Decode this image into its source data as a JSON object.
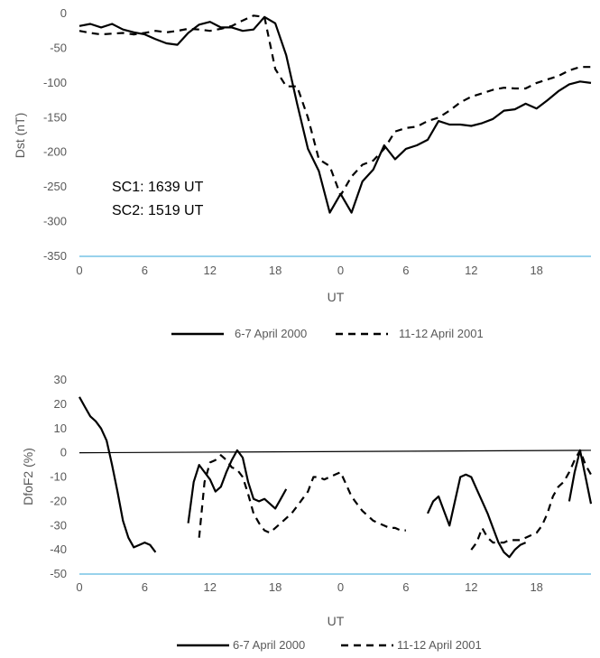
{
  "chart_data": [
    {
      "type": "line",
      "xlabel": "UT",
      "ylabel": "Dst (nT)",
      "x_ticks": [
        "0",
        "6",
        "12",
        "18",
        "0",
        "6",
        "12",
        "18"
      ],
      "x_tick_hours": [
        0,
        6,
        12,
        18,
        24,
        30,
        36,
        42
      ],
      "xlim": [
        0,
        47
      ],
      "ylim": [
        -350,
        0
      ],
      "y_ticks": [
        0,
        -50,
        -100,
        -150,
        -200,
        -250,
        -300,
        -350
      ],
      "grid": false,
      "legend": "bottom",
      "annotations": [
        "SC1: 1639 UT",
        "SC2: 1519 UT"
      ],
      "series": [
        {
          "name": "6-7 April 2000",
          "style": "solid",
          "x": [
            0,
            1,
            2,
            3,
            4,
            5,
            6,
            7,
            8,
            9,
            10,
            11,
            12,
            13,
            14,
            15,
            16,
            17,
            18,
            19,
            20,
            21,
            22,
            23,
            24,
            25,
            26,
            27,
            28,
            29,
            30,
            31,
            32,
            33,
            34,
            35,
            36,
            37,
            38,
            39,
            40,
            41,
            42,
            43,
            44,
            45,
            46,
            47
          ],
          "y": [
            -18,
            -15,
            -20,
            -15,
            -23,
            -27,
            -30,
            -37,
            -43,
            -45,
            -28,
            -16,
            -12,
            -20,
            -20,
            -25,
            -23,
            -5,
            -14,
            -60,
            -130,
            -195,
            -227,
            -287,
            -260,
            -287,
            -242,
            -225,
            -190,
            -210,
            -195,
            -190,
            -182,
            -155,
            -160,
            -160,
            -162,
            -158,
            -152,
            -140,
            -138,
            -130,
            -137,
            -125,
            -112,
            -102,
            -98,
            -100
          ]
        },
        {
          "name": "11-12 April 2001",
          "style": "dashed",
          "x": [
            0,
            1,
            2,
            3,
            4,
            5,
            6,
            7,
            8,
            9,
            10,
            11,
            12,
            13,
            14,
            15,
            16,
            17,
            18,
            19,
            20,
            21,
            22,
            23,
            24,
            25,
            26,
            27,
            28,
            29,
            30,
            31,
            32,
            33,
            34,
            35,
            36,
            37,
            38,
            39,
            40,
            41,
            42,
            43,
            44,
            45,
            46,
            47
          ],
          "y": [
            -25,
            -28,
            -30,
            -29,
            -28,
            -30,
            -28,
            -25,
            -27,
            -25,
            -22,
            -23,
            -25,
            -22,
            -18,
            -10,
            -3,
            -5,
            -80,
            -105,
            -105,
            -150,
            -210,
            -220,
            -262,
            -235,
            -218,
            -212,
            -195,
            -170,
            -165,
            -163,
            -155,
            -150,
            -140,
            -128,
            -120,
            -115,
            -110,
            -107,
            -108,
            -108,
            -100,
            -95,
            -90,
            -82,
            -77,
            -77
          ]
        }
      ]
    },
    {
      "type": "line",
      "xlabel": "UT",
      "ylabel": "DfoF2 (%)",
      "x_ticks": [
        "0",
        "6",
        "12",
        "18",
        "0",
        "6",
        "12",
        "18"
      ],
      "x_tick_hours": [
        0,
        6,
        12,
        18,
        24,
        30,
        36,
        42
      ],
      "xlim": [
        0,
        47
      ],
      "ylim": [
        -50,
        30
      ],
      "y_ticks": [
        30,
        20,
        10,
        0,
        -10,
        -20,
        -30,
        -40,
        -50
      ],
      "grid": false,
      "legend": "bottom",
      "reference_line": {
        "x": [
          0,
          47
        ],
        "y": [
          0,
          1
        ]
      },
      "series": [
        {
          "name": "6-7 April 2000",
          "style": "solid",
          "segments": [
            {
              "x": [
                0,
                0.5,
                1,
                1.5,
                2,
                2.5,
                3,
                3.5,
                4,
                4.5,
                5,
                5.5,
                6,
                6.5,
                7
              ],
              "y": [
                23,
                19,
                15,
                13,
                10,
                5,
                -5,
                -16,
                -28,
                -35,
                -39,
                -38,
                -37,
                -38,
                -41
              ]
            },
            {
              "x": [
                10,
                10.5,
                11,
                11.5,
                12,
                12.5,
                13,
                13.5,
                14,
                14.5,
                15,
                15.5,
                16,
                16.5,
                17,
                17.5,
                18,
                18.5,
                19
              ],
              "y": [
                -29,
                -12,
                -5,
                -8,
                -11,
                -16,
                -14,
                -8,
                -3,
                1,
                -2,
                -12,
                -19,
                -20,
                -19,
                -21,
                -23,
                -19,
                -15
              ]
            },
            {
              "x": [
                32,
                32.5,
                33,
                33.5,
                34,
                34.5,
                35,
                35.5,
                36,
                36.5,
                37,
                37.5,
                38,
                38.5,
                39,
                39.5,
                40,
                40.5,
                41
              ],
              "y": [
                -25,
                -20,
                -18,
                -24,
                -30,
                -20,
                -10,
                -9,
                -10,
                -15,
                -20,
                -25,
                -31,
                -37,
                -41,
                -43,
                -40,
                -38,
                -37
              ]
            },
            {
              "x": [
                45,
                45.5,
                46,
                46.5,
                47
              ],
              "y": [
                -20,
                -8,
                1,
                -10,
                -21
              ]
            }
          ]
        },
        {
          "name": "11-12 April 2001",
          "style": "dashed",
          "segments": [
            {
              "x": [
                11,
                11.5,
                12,
                12.5,
                13,
                13.5,
                14,
                14.5,
                15,
                15.5,
                16,
                16.5,
                17,
                17.5,
                18,
                18.5,
                19,
                19.5,
                20,
                20.5,
                21,
                21.5,
                22,
                22.5,
                23,
                23.5,
                24,
                24.5,
                25,
                25.5,
                26,
                26.5,
                27,
                27.5,
                28,
                28.5,
                29,
                29.5,
                30
              ],
              "y": [
                -35,
                -12,
                -4,
                -3,
                -1,
                -3,
                -6,
                -7,
                -10,
                -17,
                -25,
                -29,
                -32,
                -33,
                -31,
                -29,
                -27,
                -25,
                -22,
                -19,
                -16,
                -10,
                -10,
                -11,
                -10,
                -9,
                -8,
                -13,
                -18,
                -21,
                -24,
                -26,
                -28,
                -29,
                -30,
                -31,
                -31,
                -32,
                -32
              ]
            },
            {
              "x": [
                36,
                36.5,
                37,
                37.5,
                38,
                38.5,
                39,
                39.5,
                40,
                40.5,
                41,
                41.5,
                42,
                42.5,
                43,
                43.5,
                44,
                44.5,
                45,
                45.5,
                46,
                46.5,
                47
              ],
              "y": [
                -40,
                -37,
                -31,
                -35,
                -37,
                -37,
                -37,
                -36,
                -36,
                -36,
                -35,
                -34,
                -33,
                -30,
                -25,
                -18,
                -14,
                -12,
                -8,
                -3,
                1,
                -5,
                -9
              ]
            }
          ]
        }
      ]
    }
  ]
}
